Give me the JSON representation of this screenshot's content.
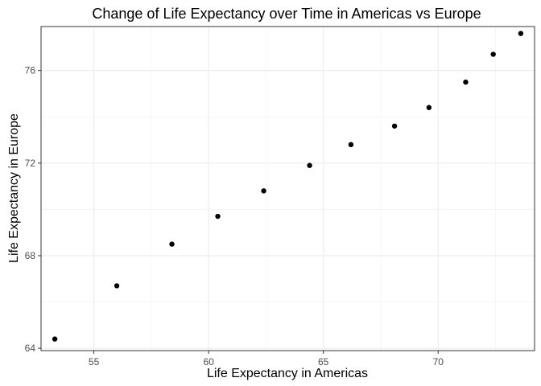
{
  "chart_data": {
    "type": "scatter",
    "title": "Change of Life Expectancy over Time in Americas vs Europe",
    "xlabel": "Life Expectancy in Americas",
    "ylabel": "Life Expectancy in Europe",
    "xlim": [
      52.7,
      74.2
    ],
    "ylim": [
      63.9,
      77.9
    ],
    "xticks": [
      55,
      60,
      65,
      70
    ],
    "yticks": [
      64,
      68,
      72,
      76
    ],
    "grid": true,
    "point_color": "#000000",
    "points": [
      {
        "x": 53.3,
        "y": 64.4
      },
      {
        "x": 56.0,
        "y": 66.7
      },
      {
        "x": 58.4,
        "y": 68.5
      },
      {
        "x": 60.4,
        "y": 69.7
      },
      {
        "x": 62.4,
        "y": 70.8
      },
      {
        "x": 64.4,
        "y": 71.9
      },
      {
        "x": 66.2,
        "y": 72.8
      },
      {
        "x": 68.1,
        "y": 73.6
      },
      {
        "x": 69.6,
        "y": 74.4
      },
      {
        "x": 71.2,
        "y": 75.5
      },
      {
        "x": 72.4,
        "y": 76.7
      },
      {
        "x": 73.6,
        "y": 77.6
      }
    ]
  }
}
